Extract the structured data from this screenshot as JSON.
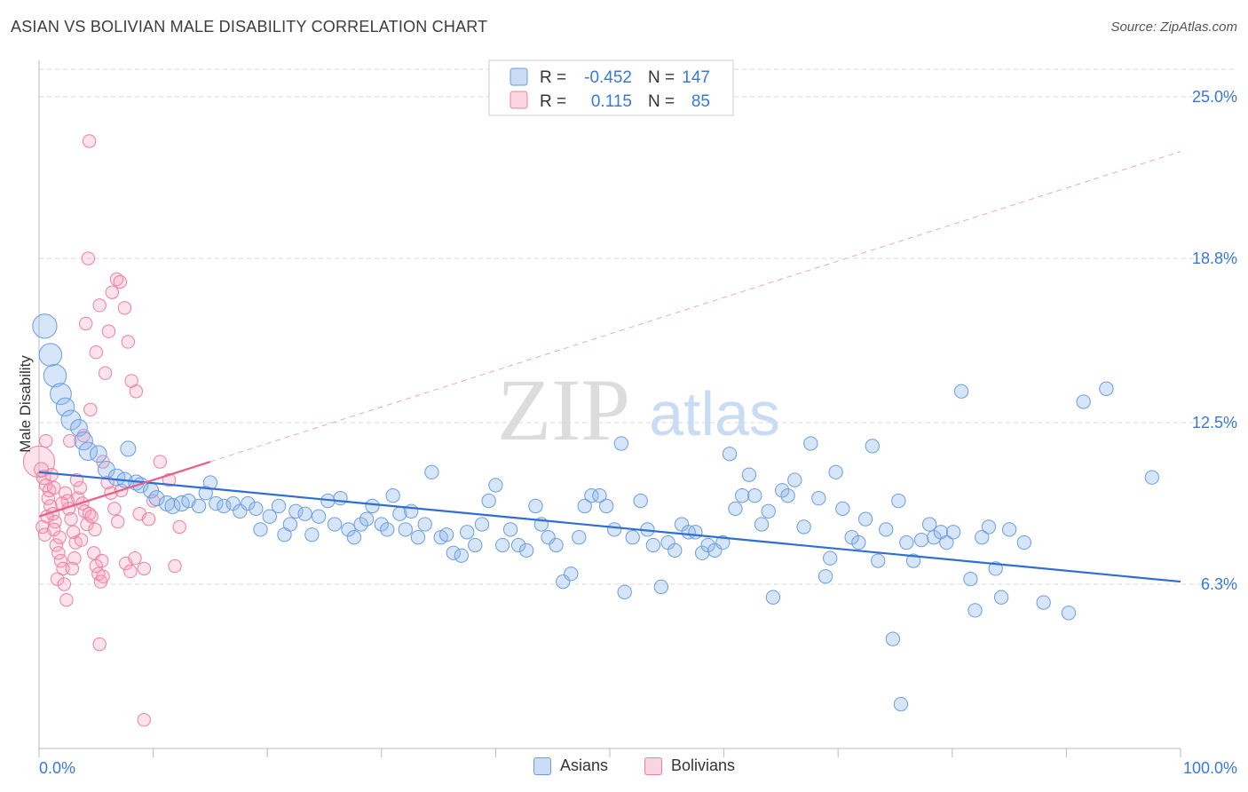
{
  "title": "ASIAN VS BOLIVIAN MALE DISABILITY CORRELATION CHART",
  "source": "Source: ZipAtlas.com",
  "watermark": {
    "zip": "ZIP",
    "atlas": "atlas"
  },
  "colors": {
    "asian": "#6a9de0",
    "asian_fill": "rgba(140,180,235,0.35)",
    "bolivian": "#ee7fa0",
    "bolivian_fill": "rgba(245,160,185,0.30)",
    "blue_text": "#3a78d8",
    "grid": "#d8d8d8"
  },
  "legend_top": [
    {
      "r_label": "R =",
      "r_value": "-0.452",
      "n_label": "N =",
      "n_value": "147",
      "series": "asian"
    },
    {
      "r_label": "R =",
      "r_value": "0.115",
      "n_label": "N =",
      "n_value": "85",
      "series": "bolivian"
    }
  ],
  "legend_bottom": [
    {
      "label": "Asians",
      "series": "asian"
    },
    {
      "label": "Bolivians",
      "series": "bolivian"
    }
  ],
  "chart_data": {
    "type": "scatter",
    "title": "ASIAN VS BOLIVIAN MALE DISABILITY CORRELATION CHART",
    "ylabel": "Male Disability",
    "xlim": [
      0,
      100
    ],
    "ylim": [
      0,
      26.6
    ],
    "x_tick_labels": {
      "left": "0.0%",
      "right": "100.0%"
    },
    "y_ticks": [
      {
        "value": 6.3,
        "label": "6.3%"
      },
      {
        "value": 12.5,
        "label": "12.5%"
      },
      {
        "value": 18.8,
        "label": "18.8%"
      },
      {
        "value": 25.0,
        "label": "25.0%"
      }
    ],
    "grid": true,
    "legend": "top-center",
    "trendlines": [
      {
        "series": "asian",
        "x": [
          0,
          100
        ],
        "y": [
          10.6,
          6.4
        ],
        "style": "solid"
      },
      {
        "series": "bolivian",
        "x": [
          0,
          15
        ],
        "y": [
          8.9,
          11.0
        ],
        "style": "solid"
      },
      {
        "series": "bolivian",
        "x": [
          15,
          100
        ],
        "y": [
          11.0,
          22.9
        ],
        "style": "dashed"
      }
    ],
    "series": [
      {
        "name": "Asians",
        "points": [
          [
            0.5,
            16.2,
            1.6
          ],
          [
            1,
            15.1,
            1.5
          ],
          [
            1.4,
            14.3,
            1.5
          ],
          [
            1.9,
            13.6,
            1.4
          ],
          [
            2.3,
            13.1,
            1.2
          ],
          [
            2.8,
            12.6,
            1.3
          ],
          [
            3.5,
            12.3,
            1.1
          ],
          [
            3.9,
            11.8,
            1.2
          ],
          [
            4.3,
            11.4,
            1.2
          ],
          [
            5.2,
            11.3,
            1.1
          ],
          [
            7.8,
            11.5,
            1.0
          ],
          [
            5.9,
            10.7,
            1.1
          ],
          [
            6.8,
            10.4,
            1.1
          ],
          [
            7.5,
            10.3,
            1.0
          ],
          [
            8.5,
            10.2,
            1.0
          ],
          [
            8.9,
            10.1,
            1.0
          ],
          [
            9.8,
            9.9,
            1.0
          ],
          [
            10.3,
            9.6,
            1.0
          ],
          [
            11.2,
            9.4,
            1.0
          ],
          [
            11.7,
            9.3,
            1.0
          ],
          [
            12.5,
            9.4,
            1.0
          ],
          [
            13.1,
            9.5,
            0.9
          ],
          [
            14,
            9.3,
            0.9
          ],
          [
            14.6,
            9.8,
            0.9
          ],
          [
            15,
            10.2,
            0.9
          ],
          [
            15.5,
            9.4,
            0.9
          ],
          [
            16.2,
            9.3,
            0.9
          ],
          [
            17,
            9.4,
            0.9
          ],
          [
            17.6,
            9.1,
            0.9
          ],
          [
            18.3,
            9.4,
            0.9
          ],
          [
            19,
            9.2,
            0.9
          ],
          [
            19.4,
            8.4,
            0.9
          ],
          [
            20.2,
            8.9,
            0.9
          ],
          [
            21,
            9.3,
            0.9
          ],
          [
            21.5,
            8.2,
            0.9
          ],
          [
            22,
            8.6,
            0.9
          ],
          [
            22.5,
            9.1,
            0.9
          ],
          [
            23.3,
            9.0,
            0.9
          ],
          [
            23.9,
            8.2,
            0.9
          ],
          [
            24.5,
            8.9,
            0.9
          ],
          [
            25.3,
            9.5,
            0.9
          ],
          [
            25.9,
            8.6,
            0.9
          ],
          [
            26.4,
            9.6,
            0.9
          ],
          [
            27.1,
            8.4,
            0.9
          ],
          [
            27.6,
            8.1,
            0.9
          ],
          [
            28.2,
            8.6,
            0.9
          ],
          [
            28.7,
            8.8,
            0.9
          ],
          [
            29.2,
            9.3,
            0.9
          ],
          [
            30,
            8.6,
            0.9
          ],
          [
            30.5,
            8.4,
            0.9
          ],
          [
            31,
            9.7,
            0.9
          ],
          [
            31.6,
            9.0,
            0.9
          ],
          [
            32.1,
            8.4,
            0.9
          ],
          [
            32.6,
            9.1,
            0.9
          ],
          [
            33.2,
            8.1,
            0.9
          ],
          [
            33.8,
            8.6,
            0.9
          ],
          [
            34.4,
            10.6,
            0.9
          ],
          [
            35.2,
            8.1,
            0.9
          ],
          [
            35.7,
            8.2,
            0.9
          ],
          [
            36.3,
            7.5,
            0.9
          ],
          [
            37,
            7.4,
            0.9
          ],
          [
            37.5,
            8.3,
            0.9
          ],
          [
            38.2,
            7.8,
            0.9
          ],
          [
            38.8,
            8.6,
            0.9
          ],
          [
            39.4,
            9.5,
            0.9
          ],
          [
            40,
            10.1,
            0.9
          ],
          [
            40.6,
            7.8,
            0.9
          ],
          [
            41.3,
            8.4,
            0.9
          ],
          [
            42,
            7.8,
            0.9
          ],
          [
            42.7,
            7.6,
            0.9
          ],
          [
            43.5,
            9.3,
            0.9
          ],
          [
            44,
            8.6,
            0.9
          ],
          [
            44.6,
            8.1,
            0.9
          ],
          [
            45.3,
            7.8,
            0.9
          ],
          [
            45.9,
            6.4,
            0.9
          ],
          [
            46.6,
            6.7,
            0.9
          ],
          [
            47.3,
            8.1,
            0.9
          ],
          [
            47.8,
            9.3,
            0.9
          ],
          [
            48.4,
            9.7,
            0.9
          ],
          [
            49.1,
            9.7,
            0.9
          ],
          [
            49.7,
            9.3,
            0.9
          ],
          [
            50.4,
            8.4,
            0.9
          ],
          [
            51,
            11.7,
            0.9
          ],
          [
            51.3,
            6.0,
            0.9
          ],
          [
            52,
            8.1,
            0.9
          ],
          [
            52.7,
            9.5,
            0.9
          ],
          [
            53.3,
            8.4,
            0.9
          ],
          [
            53.8,
            7.8,
            0.9
          ],
          [
            54.5,
            6.2,
            0.9
          ],
          [
            55.1,
            7.9,
            0.9
          ],
          [
            55.7,
            7.6,
            0.9
          ],
          [
            56.3,
            8.6,
            0.9
          ],
          [
            56.9,
            8.3,
            0.9
          ],
          [
            57.5,
            8.3,
            0.9
          ],
          [
            58.1,
            7.5,
            0.9
          ],
          [
            58.6,
            7.8,
            0.9
          ],
          [
            59.2,
            7.6,
            0.9
          ],
          [
            59.9,
            7.9,
            0.9
          ],
          [
            60.5,
            11.3,
            0.9
          ],
          [
            61,
            9.2,
            0.9
          ],
          [
            61.6,
            9.7,
            0.9
          ],
          [
            62.2,
            10.5,
            0.9
          ],
          [
            62.7,
            9.7,
            0.9
          ],
          [
            63.3,
            8.6,
            0.9
          ],
          [
            63.9,
            9.1,
            0.9
          ],
          [
            64.3,
            5.8,
            0.9
          ],
          [
            65.1,
            9.9,
            0.9
          ],
          [
            65.6,
            9.7,
            0.9
          ],
          [
            66.2,
            10.3,
            0.9
          ],
          [
            67,
            8.5,
            0.9
          ],
          [
            67.6,
            11.7,
            0.9
          ],
          [
            68.3,
            9.6,
            0.9
          ],
          [
            68.9,
            6.6,
            0.9
          ],
          [
            69.3,
            7.3,
            0.9
          ],
          [
            69.8,
            10.6,
            0.9
          ],
          [
            70.4,
            9.2,
            0.9
          ],
          [
            71.2,
            8.1,
            0.9
          ],
          [
            71.8,
            7.9,
            0.9
          ],
          [
            72.4,
            8.8,
            0.9
          ],
          [
            73,
            11.6,
            0.9
          ],
          [
            73.5,
            7.2,
            0.9
          ],
          [
            74.2,
            8.4,
            0.9
          ],
          [
            74.8,
            4.2,
            0.9
          ],
          [
            75.3,
            9.5,
            0.9
          ],
          [
            76,
            7.9,
            0.9
          ],
          [
            76.6,
            7.2,
            0.9
          ],
          [
            77.3,
            8.0,
            0.9
          ],
          [
            78,
            8.6,
            0.9
          ],
          [
            78.4,
            8.1,
            0.9
          ],
          [
            79,
            8.3,
            0.9
          ],
          [
            79.5,
            7.9,
            0.9
          ],
          [
            80.1,
            8.3,
            0.9
          ],
          [
            80.8,
            13.7,
            0.9
          ],
          [
            81.6,
            6.5,
            0.9
          ],
          [
            82,
            5.3,
            0.9
          ],
          [
            82.6,
            8.1,
            0.9
          ],
          [
            83.2,
            8.5,
            0.9
          ],
          [
            83.8,
            6.9,
            0.9
          ],
          [
            84.3,
            5.8,
            0.9
          ],
          [
            85,
            8.4,
            0.9
          ],
          [
            86.3,
            7.9,
            0.9
          ],
          [
            88,
            5.6,
            0.9
          ],
          [
            90.2,
            5.2,
            0.9
          ],
          [
            91.5,
            13.3,
            0.9
          ],
          [
            93.5,
            13.8,
            0.9
          ],
          [
            75.5,
            1.7,
            0.9
          ],
          [
            97.5,
            10.4,
            0.9
          ]
        ]
      },
      {
        "name": "Bolivians",
        "points": [
          [
            0,
            11.0,
            2.2
          ],
          [
            0.2,
            10.7,
            1.0
          ],
          [
            0.4,
            10.4,
            1.0
          ],
          [
            0.6,
            10.1,
            0.9
          ],
          [
            0.8,
            9.6,
            0.9
          ],
          [
            1,
            9.3,
            0.9
          ],
          [
            1.2,
            9.0,
            0.9
          ],
          [
            1.4,
            8.7,
            0.9
          ],
          [
            0.3,
            8.5,
            0.9
          ],
          [
            0.5,
            8.2,
            0.9
          ],
          [
            0.7,
            8.9,
            0.9
          ],
          [
            0.9,
            9.9,
            0.9
          ],
          [
            1.1,
            10.5,
            0.9
          ],
          [
            1.3,
            8.4,
            0.9
          ],
          [
            1.5,
            7.8,
            0.9
          ],
          [
            1.7,
            7.5,
            0.9
          ],
          [
            1.9,
            7.2,
            0.9
          ],
          [
            2.1,
            6.9,
            0.9
          ],
          [
            1.6,
            6.5,
            0.9
          ],
          [
            2.2,
            6.3,
            0.9
          ],
          [
            2.4,
            5.7,
            0.9
          ],
          [
            2.6,
            9.2,
            0.9
          ],
          [
            2.8,
            8.8,
            0.9
          ],
          [
            3,
            8.3,
            0.9
          ],
          [
            3.2,
            7.9,
            0.9
          ],
          [
            3.4,
            9.6,
            0.9
          ],
          [
            3.6,
            10.0,
            0.9
          ],
          [
            3.8,
            9.4,
            0.9
          ],
          [
            4,
            9.1,
            0.9
          ],
          [
            4.2,
            8.6,
            0.9
          ],
          [
            4.4,
            9.0,
            0.9
          ],
          [
            4.6,
            8.9,
            0.9
          ],
          [
            4.8,
            7.5,
            0.9
          ],
          [
            5,
            7.0,
            0.9
          ],
          [
            5.2,
            6.7,
            0.9
          ],
          [
            5.4,
            6.4,
            0.9
          ],
          [
            5.6,
            6.6,
            0.9
          ],
          [
            2.3,
            9.8,
            0.9
          ],
          [
            2.5,
            9.5,
            0.9
          ],
          [
            2.7,
            11.8,
            0.9
          ],
          [
            3.3,
            10.3,
            0.9
          ],
          [
            3.9,
            12.0,
            0.9
          ],
          [
            4.5,
            13.0,
            0.9
          ],
          [
            5,
            15.2,
            0.9
          ],
          [
            5.3,
            17.0,
            0.9
          ],
          [
            5.8,
            14.4,
            0.9
          ],
          [
            6.1,
            16.0,
            0.9
          ],
          [
            6.4,
            17.5,
            0.9
          ],
          [
            6.8,
            18.0,
            0.9
          ],
          [
            7.1,
            17.9,
            0.9
          ],
          [
            7.5,
            16.9,
            0.9
          ],
          [
            7.8,
            15.6,
            0.9
          ],
          [
            8.1,
            14.1,
            0.9
          ],
          [
            8.5,
            13.7,
            0.9
          ],
          [
            4.1,
            16.3,
            0.9
          ],
          [
            4.3,
            18.8,
            0.9
          ],
          [
            4.4,
            23.3,
            0.9
          ],
          [
            5.6,
            11.0,
            0.9
          ],
          [
            6,
            10.2,
            0.9
          ],
          [
            6.3,
            9.8,
            0.9
          ],
          [
            6.6,
            9.2,
            0.9
          ],
          [
            6.9,
            8.7,
            0.9
          ],
          [
            7.2,
            9.9,
            0.9
          ],
          [
            7.6,
            7.1,
            0.9
          ],
          [
            8,
            6.8,
            0.9
          ],
          [
            8.4,
            7.3,
            0.9
          ],
          [
            8.8,
            9.0,
            0.9
          ],
          [
            9.2,
            6.9,
            0.9
          ],
          [
            9.6,
            8.8,
            0.9
          ],
          [
            10,
            9.5,
            0.9
          ],
          [
            10.6,
            11.0,
            0.9
          ],
          [
            11.4,
            10.3,
            0.9
          ],
          [
            11.9,
            7.0,
            0.9
          ],
          [
            12.3,
            8.5,
            0.9
          ],
          [
            5.3,
            4.0,
            0.9
          ],
          [
            9.2,
            1.1,
            0.9
          ],
          [
            0.6,
            11.8,
            0.9
          ],
          [
            1.3,
            10.0,
            0.9
          ],
          [
            2,
            9.4,
            0.9
          ],
          [
            3.1,
            7.3,
            0.9
          ],
          [
            3.7,
            8.0,
            0.9
          ],
          [
            4.9,
            8.4,
            0.9
          ],
          [
            5.5,
            7.2,
            0.9
          ],
          [
            2.9,
            6.9,
            0.9
          ],
          [
            1.8,
            8.1,
            0.9
          ]
        ]
      }
    ]
  }
}
